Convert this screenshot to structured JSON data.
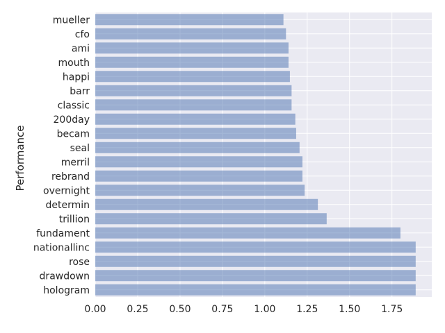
{
  "chart_data": {
    "type": "bar",
    "orientation": "horizontal",
    "categories": [
      "mueller",
      "cfo",
      "ami",
      "mouth",
      "happi",
      "barr",
      "classic",
      "200day",
      "becam",
      "seal",
      "merril",
      "rebrand",
      "overnight",
      "determin",
      "trillion",
      "fundament",
      "nationallinc",
      "rose",
      "drawdown",
      "hologram"
    ],
    "values": [
      1.11,
      1.125,
      1.14,
      1.14,
      1.148,
      1.158,
      1.158,
      1.18,
      1.185,
      1.205,
      1.222,
      1.222,
      1.235,
      1.313,
      1.365,
      1.8,
      1.89,
      1.89,
      1.89,
      1.89
    ],
    "title": "",
    "xlabel": "",
    "ylabel": "Performance",
    "xlim": [
      0,
      1.985
    ],
    "xticks": [
      0.0,
      0.25,
      0.5,
      0.75,
      1.0,
      1.25,
      1.5,
      1.75
    ],
    "xtick_labels": [
      "0.00",
      "0.25",
      "0.50",
      "0.75",
      "1.00",
      "1.25",
      "1.50",
      "1.75"
    ],
    "grid": true,
    "legend": "none",
    "colors": {
      "bar": "#4c72b0",
      "background": "#eaeaf2",
      "grid": "#ffffff",
      "text": "#262626"
    }
  }
}
